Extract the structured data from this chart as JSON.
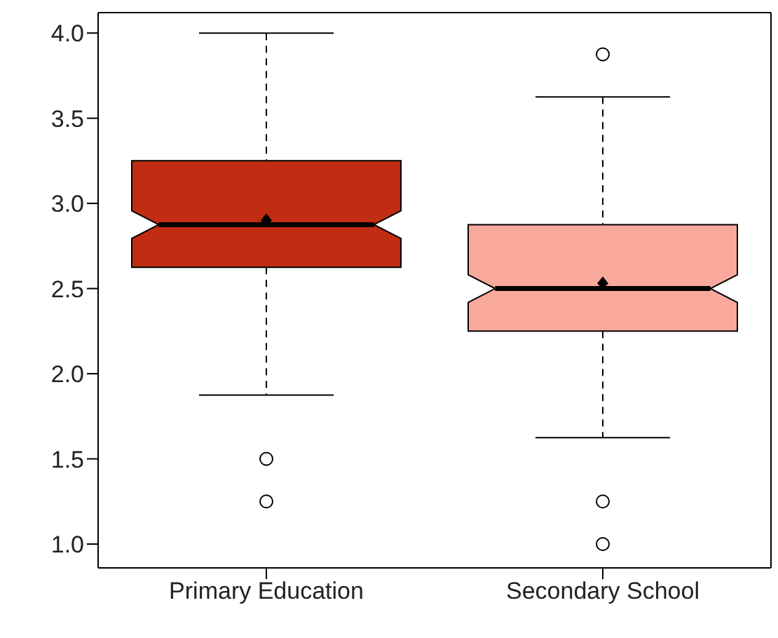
{
  "chart_data": {
    "type": "box",
    "categories": [
      "Primary Education",
      "Secondary School"
    ],
    "boxes": [
      {
        "low": 1.875,
        "q1": 2.625,
        "median": 2.875,
        "q3": 3.25,
        "high": 4.0,
        "mean": 2.9,
        "outliers": [
          1.5,
          1.25
        ]
      },
      {
        "low": 1.625,
        "q1": 2.25,
        "median": 2.5,
        "q3": 2.875,
        "high": 3.625,
        "mean": 2.53,
        "outliers": [
          3.875,
          1.25,
          1.0
        ]
      }
    ],
    "colors": [
      "#c02d12",
      "#f8a99b"
    ],
    "ylim": [
      0.86,
      4.12
    ],
    "yticks": [
      {
        "value": 1,
        "label": "1.0"
      },
      {
        "value": 1.5,
        "label": "1.5"
      },
      {
        "value": 2,
        "label": "2.0"
      },
      {
        "value": 2.5,
        "label": "2.5"
      },
      {
        "value": 3,
        "label": "3.0"
      },
      {
        "value": 3.5,
        "label": "3.5"
      },
      {
        "value": 4,
        "label": "4.0"
      }
    ],
    "grid": false,
    "legend": false
  }
}
